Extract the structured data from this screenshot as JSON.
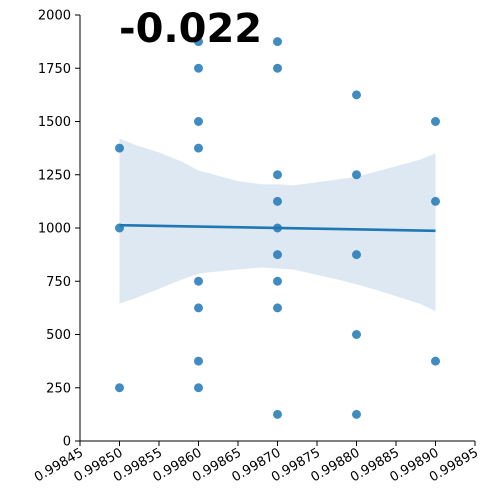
{
  "chart_data": {
    "type": "scatter",
    "title": "",
    "xlabel": "",
    "ylabel": "",
    "annotation": "-0.022",
    "xlim": [
      0.99845,
      0.99895
    ],
    "ylim": [
      0,
      2000
    ],
    "xticks": [
      "0.99845",
      "0.99850",
      "0.99855",
      "0.99860",
      "0.99865",
      "0.99870",
      "0.99875",
      "0.99880",
      "0.99885",
      "0.99890",
      "0.99895"
    ],
    "xtick_values": [
      0.99845,
      0.9985,
      0.99855,
      0.9986,
      0.99865,
      0.9987,
      0.99875,
      0.9988,
      0.99885,
      0.9989,
      0.99895
    ],
    "yticks": [
      "0",
      "250",
      "500",
      "750",
      "1000",
      "1250",
      "1500",
      "1750",
      "2000"
    ],
    "ytick_values": [
      0,
      250,
      500,
      750,
      1000,
      1250,
      1500,
      1750,
      2000
    ],
    "grid": false,
    "colors": {
      "points": "#1f77b4",
      "regression_line": "#1f77b4",
      "confidence_band": "#dde8f3"
    },
    "points": [
      {
        "x": 0.9985,
        "y": 1375
      },
      {
        "x": 0.9985,
        "y": 1000
      },
      {
        "x": 0.9985,
        "y": 250
      },
      {
        "x": 0.9986,
        "y": 1875
      },
      {
        "x": 0.9986,
        "y": 1750
      },
      {
        "x": 0.9986,
        "y": 1500
      },
      {
        "x": 0.9986,
        "y": 1375
      },
      {
        "x": 0.9986,
        "y": 750
      },
      {
        "x": 0.9986,
        "y": 625
      },
      {
        "x": 0.9986,
        "y": 375
      },
      {
        "x": 0.9986,
        "y": 250
      },
      {
        "x": 0.9987,
        "y": 1875
      },
      {
        "x": 0.9987,
        "y": 1750
      },
      {
        "x": 0.9987,
        "y": 1250
      },
      {
        "x": 0.9987,
        "y": 1125
      },
      {
        "x": 0.9987,
        "y": 1000
      },
      {
        "x": 0.9987,
        "y": 875
      },
      {
        "x": 0.9987,
        "y": 750
      },
      {
        "x": 0.9987,
        "y": 625
      },
      {
        "x": 0.9987,
        "y": 125
      },
      {
        "x": 0.9988,
        "y": 1625
      },
      {
        "x": 0.9988,
        "y": 1250
      },
      {
        "x": 0.9988,
        "y": 875
      },
      {
        "x": 0.9988,
        "y": 500
      },
      {
        "x": 0.9988,
        "y": 125
      },
      {
        "x": 0.9989,
        "y": 1500
      },
      {
        "x": 0.9989,
        "y": 1125
      },
      {
        "x": 0.9989,
        "y": 375
      }
    ],
    "regression": {
      "x": [
        0.9985,
        0.9989
      ],
      "y": [
        1013,
        987
      ]
    },
    "confidence_band": {
      "x": [
        0.9985,
        0.99852,
        0.99855,
        0.99858,
        0.9986,
        0.99862,
        0.99865,
        0.99868,
        0.9987,
        0.99872,
        0.99875,
        0.99878,
        0.9988,
        0.99882,
        0.99885,
        0.99888,
        0.9989
      ],
      "upper": [
        1420,
        1390,
        1355,
        1310,
        1270,
        1250,
        1220,
        1205,
        1205,
        1200,
        1215,
        1230,
        1240,
        1260,
        1290,
        1320,
        1350
      ],
      "lower": [
        645,
        670,
        715,
        760,
        785,
        795,
        805,
        815,
        810,
        805,
        780,
        755,
        735,
        715,
        680,
        645,
        610
      ]
    }
  }
}
